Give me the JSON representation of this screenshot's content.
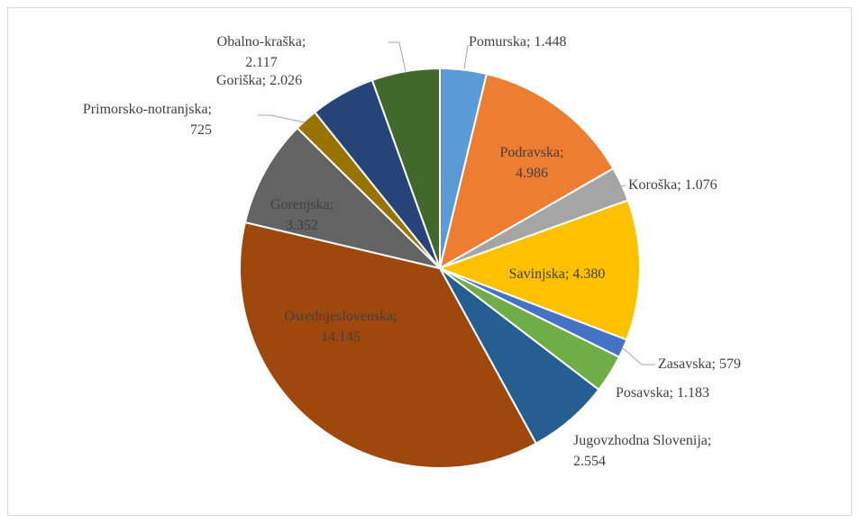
{
  "chart_data": {
    "type": "pie",
    "categories": [
      "Pomurska;",
      "Podravska;",
      "Koroška;",
      "Savinjska;",
      "Zasavska;",
      "Posavska;",
      "Jugovzhodna Slovenija;",
      "Osrednjeslovenska;",
      "Gorenjska;",
      "Primorsko-notranjska;",
      "Goriška;",
      "Obalno-kraška;"
    ],
    "values": [
      1448,
      4986,
      1076,
      4380,
      579,
      1183,
      2554,
      14145,
      3352,
      725,
      2026,
      2117
    ],
    "value_labels": [
      "1.448",
      "4.986",
      "1.076",
      "4.380",
      "579",
      "1.183",
      "2.554",
      "14.145",
      "3.352",
      "725",
      "2.026",
      "2.117"
    ],
    "colors": [
      "#5b9bd5",
      "#ed7d31",
      "#a5a5a5",
      "#ffc000",
      "#4472c4",
      "#70ad47",
      "#255e91",
      "#9e480e",
      "#636363",
      "#997300",
      "#264478",
      "#43682b"
    ]
  }
}
